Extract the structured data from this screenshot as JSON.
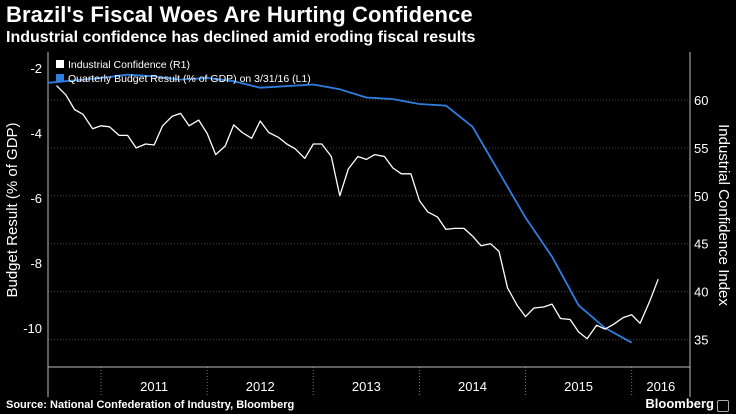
{
  "header": {
    "title": "Brazil's Fiscal Woes Are Hurting Confidence",
    "subtitle": "Industrial confidence has declined amid eroding fiscal results"
  },
  "footer": {
    "source": "Source: National Confederation of Industry, Bloomberg",
    "brand": "Bloomberg"
  },
  "colors": {
    "background": "#000000",
    "grid": "#444444",
    "budget_series": "#2f7fe0",
    "confidence_series": "#ffffff"
  },
  "chart_data": {
    "type": "line",
    "title": "Brazil's Fiscal Woes Are Hurting Confidence",
    "ylabel_left": "Budget Result (% of GDP)",
    "ylabel_right": "Industrial Confidence Index",
    "ylim_left": [
      -10.8,
      -1.5
    ],
    "ylim_right": [
      33.5,
      65
    ],
    "left_ticks": [
      -2,
      -4,
      -6,
      -8,
      -10
    ],
    "right_ticks": [
      35,
      40,
      45,
      50,
      55,
      60
    ],
    "xlim": [
      2010.5,
      2016.55
    ],
    "year_labels": [
      "2011",
      "2012",
      "2013",
      "2014",
      "2015",
      "2016"
    ],
    "legend": {
      "placement": "top-left",
      "entries": [
        "Industrial Confidence (R1)",
        "Quarterly Budget Result (% of GDP) on 3/31/16 (L1)"
      ]
    },
    "series": [
      {
        "name": "Quarterly Budget Result (% of GDP) on 3/31/16 (L1)",
        "axis": "left",
        "x": [
          2010.5,
          2011.0,
          2011.25,
          2011.5,
          2011.75,
          2012.0,
          2012.25,
          2012.5,
          2012.75,
          2013.0,
          2013.25,
          2013.5,
          2013.75,
          2014.0,
          2014.25,
          2014.5,
          2014.75,
          2015.0,
          2015.25,
          2015.5,
          2015.75,
          2016.0
        ],
        "values": [
          -2.45,
          -2.3,
          -2.2,
          -2.25,
          -2.35,
          -2.3,
          -2.4,
          -2.6,
          -2.55,
          -2.5,
          -2.65,
          -2.9,
          -2.95,
          -3.1,
          -3.15,
          -3.8,
          -5.2,
          -6.6,
          -7.8,
          -9.3,
          -10.0,
          -10.45
        ]
      },
      {
        "name": "Industrial Confidence (R1)",
        "axis": "right",
        "x": [
          2010.58,
          2010.67,
          2010.75,
          2010.83,
          2010.92,
          2011.0,
          2011.08,
          2011.17,
          2011.25,
          2011.33,
          2011.42,
          2011.5,
          2011.58,
          2011.67,
          2011.75,
          2011.83,
          2011.92,
          2012.0,
          2012.08,
          2012.17,
          2012.25,
          2012.33,
          2012.42,
          2012.5,
          2012.58,
          2012.67,
          2012.75,
          2012.83,
          2012.92,
          2013.0,
          2013.08,
          2013.17,
          2013.25,
          2013.33,
          2013.42,
          2013.5,
          2013.58,
          2013.67,
          2013.75,
          2013.83,
          2013.92,
          2014.0,
          2014.08,
          2014.17,
          2014.25,
          2014.33,
          2014.42,
          2014.5,
          2014.58,
          2014.67,
          2014.75,
          2014.83,
          2014.92,
          2015.0,
          2015.08,
          2015.17,
          2015.25,
          2015.33,
          2015.42,
          2015.5,
          2015.58,
          2015.67,
          2015.75,
          2015.83,
          2015.92,
          2016.0,
          2016.08,
          2016.17,
          2016.25
        ],
        "values": [
          61.5,
          60.5,
          59,
          58.5,
          57,
          57.3,
          57.2,
          56.3,
          56.3,
          55.0,
          55.4,
          55.3,
          57.3,
          58.3,
          58.6,
          57.3,
          57.9,
          56.5,
          54.3,
          55.2,
          57.4,
          56.6,
          56.0,
          57.8,
          56.6,
          56.1,
          55.4,
          54.9,
          53.9,
          55.4,
          55.4,
          54.1,
          50.0,
          52.8,
          54.1,
          53.8,
          54.3,
          54.1,
          52.9,
          52.3,
          52.3,
          49.5,
          48.3,
          47.8,
          46.5,
          46.6,
          46.6,
          45.8,
          44.8,
          45.0,
          44.2,
          40.4,
          38.6,
          37.4,
          38.3,
          38.4,
          38.7,
          37.2,
          37.1,
          35.8,
          35.1,
          36.5,
          36.1,
          36.6,
          37.3,
          37.6,
          36.7,
          39.0,
          41.3
        ]
      }
    ]
  }
}
